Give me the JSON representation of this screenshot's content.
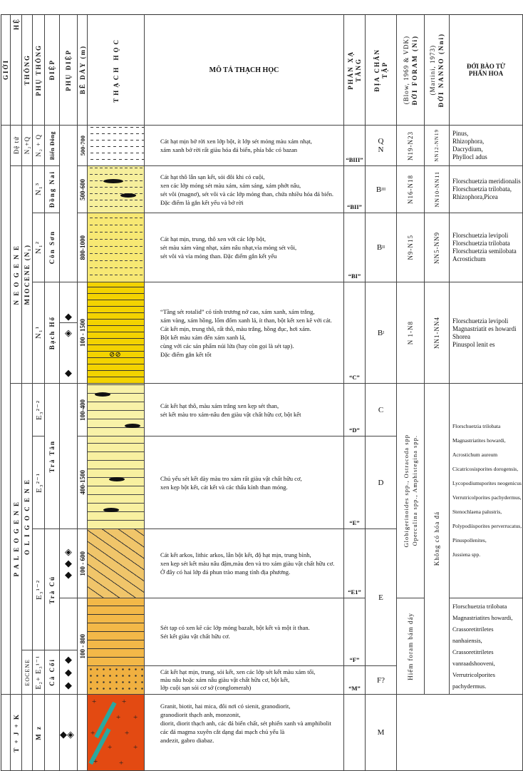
{
  "header": {
    "gioi": "GIỚI",
    "he": "HỆ",
    "thong": "THỐNG",
    "phu_thong": "PHỤ THỐNG",
    "diep": "ĐIỆP",
    "phu_diep": "PHỤ ĐIỆP",
    "be_day": "BỀ DÀY (m)",
    "thach_hoc": "THẠCH HỌC",
    "mo_ta": "MÔ TẢ THẠCH HỌC",
    "tang_1": "TẦNG",
    "tang_2": "PHẢN XẠ",
    "tap_1": "TẬP",
    "tap_2": "ĐỊA CHẤN",
    "foram_1": "ĐỚI FORAM (Ni)",
    "foram_2": "(Blow, 1969 & VDK)",
    "nanno_1": "ĐỚI NANNO (Nni)",
    "nanno_2": "(Martini, 1973)",
    "spore_1": "ĐỚI BÀO TỬ",
    "spore_2": "PHẤN HOA"
  },
  "he": {
    "q": "Đệ tứ",
    "neogene": "N E O G E N E",
    "paleogene": "P A L E O G E N E",
    "mz": "T + J + K"
  },
  "thong": {
    "q": "N₂+Q",
    "miocene": "MIOCENE (N₁)",
    "oligocene": "O L I G O C E N E",
    "eocene": "EOCENE"
  },
  "phu_thong": {
    "q": "N₂ + Q",
    "dn": "N₁³",
    "cs": "N₁²",
    "bh": "N₁¹",
    "e32_2": "E₃²⁻²",
    "e32_1": "E₃²⁻¹",
    "e31_2": "E₃¹⁻²",
    "e_cc": "E₂+ E₃¹⁻¹",
    "mz": "M z"
  },
  "diep": {
    "q": "Biển Đông",
    "dn": "Đồng Nai",
    "cs": "Côn Sơn",
    "bh": "Bạch Hổ",
    "tt": "Trà Tân",
    "tc": "Trà Cú",
    "cc": "Cà Cối"
  },
  "be_day": [
    "500-700",
    "500-600",
    "800-1000",
    "100 - 1500",
    "100-400",
    "400-1500",
    "100 - 600",
    "100 - 800"
  ],
  "descriptions": [
    [
      "Cát hạt mịn bở rời xen lớp bột, ít lớp sét mỏng màu xám nhạt,",
      "xám xanh bở rời rất giàu hóa đá biển, phía bắc có bazan"
    ],
    [
      "Cát hạt thô lẫn sạn kết, sỏi đôi khi có cuội,",
      "xen các lớp mỏng sét màu xám, xám sáng, xám phớt nâu,",
      "sét vôi (magnơ), sét vôi và các lớp mỏng than, chứa nhiều hóa đá biển.",
      "Đặc điểm là gắn kết yếu và bở rời"
    ],
    [
      "Cát hạt mịn, trung, thô xen với các lớp bột,",
      "sét màu xám vàng nhạt, xám nâu nhạt,vỉa mỏng sét vôi,",
      "sét vôi và vỉa mỏng than. Đặc điểm gắn kết yếu"
    ],
    [
      "“Tầng sét rotalid” có tính trương nở cao, xám xanh, xám trắng,",
      "xám vàng, xám hồng, lốm đốm xanh lá, ít than, bột kết xen kẽ với cát.",
      "Cát kết mịn, trung thô, rất thô, màu trắng, hồng đục, hơi xám.",
      "Bột kết màu xám đến xám xanh lá,",
      "cùng với các sản phẩm núi lửa (hay còn gọi là sét tạp).",
      "Đặc điểm gắn kết tốt"
    ],
    [
      "Cát kết hạt thô, màu xám trắng xen kẹp sét than,",
      "sét kết màu tro xám-nâu đen giàu vật chất hữu cơ, bột kết"
    ],
    [
      "Chủ yếu sét kết dày màu tro xám rất giàu vật chất hữu cơ,",
      "xen kẹp bột kết, cát kết và các thấu kính than mỏng."
    ],
    [
      "Cát kết arkos, lithic arkos, lẫn bột kết, độ hạt mịn, trung bình,",
      "xen kẹp sét kết màu nâu đậm,màu đen và tro xám giàu vật chất hữu cơ.",
      "Ở đây có hai lớp đá phun trào mang tính địa phương."
    ],
    [
      "Sét tạp có xen kẽ các lớp mỏng bazalt, bột kết và một ít than.",
      "Sét kết giàu vật chất hữu cơ."
    ],
    [
      "Cát kết hạt mịn, trung, sỏi kết, xen các lớp sét kết màu xám tối,",
      "màu nâu hoặc xám nâu giàu vật chất hữu cơ, bột kết,",
      "lớp cuội sạn sỏi cơ sở (conglomerah)"
    ],
    [
      "Granit, biotit, hai mica, đôi nơi có sienit, granodiorit,",
      "granodiorit thạch anh, monzonit,",
      "diorit, diorit thạch anh, các đá biến chất, sét phiến xanh và amphibolit",
      "các đá magma xuyên cắt dạng đai mạch chủ yếu là",
      "andezit, gabro diabaz."
    ]
  ],
  "tang_phan_xa": [
    "“BIII”",
    "“BII”",
    "“BI”",
    "“C”",
    "“D”",
    "“E”",
    "“E1”",
    "“F”",
    "“M”"
  ],
  "tap_dia_chan": {
    "q_1": "Q",
    "q_2": "N",
    "b3": "B",
    "b3_sub": "III",
    "b2": "B",
    "b2_sub": "II",
    "b1": "B",
    "b1_sub": "I",
    "c": "C",
    "d": "D",
    "e": "E",
    "f": "F?",
    "m": "M"
  },
  "foram": {
    "q": "N19-N23",
    "dn": "N16-N18",
    "cs": "N9-N15",
    "bh": "N 1-N8",
    "olig_1": "Operculina spp., Amphistegina spp.",
    "olig_2": "Globigerinoides spp., Ostracoda spp",
    "hiem": "Hiếm foram bám dáy"
  },
  "nanno": {
    "q": "NN12-NN19",
    "dn": "NN10-NN11",
    "cs": "NN5-NN9",
    "bh": "NN1-NN4",
    "none": "Không có hóa đá"
  },
  "spores": {
    "q": [
      "Pinus,",
      "Rhizophora,",
      "Dacrydium,",
      "Phyllocl adus"
    ],
    "dn": [
      "Florschuetzia meridionalis",
      "Florschuetzia trilobata,",
      "Rhizophora,Picea"
    ],
    "cs": [
      "Florschuetzia levipoli",
      "Florschuetzia trilobata",
      "Florschuetzia semilobata",
      "Acrostichum"
    ],
    "bh": [
      "Florschuetzia levipoli",
      "Magnastriatit es howardi",
      "Shorea",
      "Pinuspol lenit es"
    ],
    "olig": [
      "Florschuetzia trilobata",
      "Magnastriatites howardi,",
      "Acrostichum aureum",
      "Cicatricosisporites dorogensis,",
      "Lycopodiumsporites neogenicus",
      "Verrutricolporites pachydermus,",
      "Stenochlaena palustris,",
      "Polypodiisporites perverrucatus,",
      "Pinuspollenites,",
      "Jussiena spp."
    ],
    "eoc": [
      "Florschuetzia trilobata",
      "Magnastriatites howardi,",
      "Crassoretitriletes",
      "nanhaiensis,",
      "Crassoretitriletes",
      "vanraadshooveni,",
      "Verrutricolporites",
      "pachydermus."
    ]
  },
  "colors": {
    "q": "#ffffff",
    "dong_nai": "#f6ef9c",
    "con_son": "#f7e873",
    "bach_ho": "#f3d300",
    "tra_tan": "#f8f0a0",
    "tra_cu": "#f0c56a",
    "ca_coi": "#f3b848",
    "basement": "#e34a12",
    "dyke": "#2aa8a0"
  }
}
